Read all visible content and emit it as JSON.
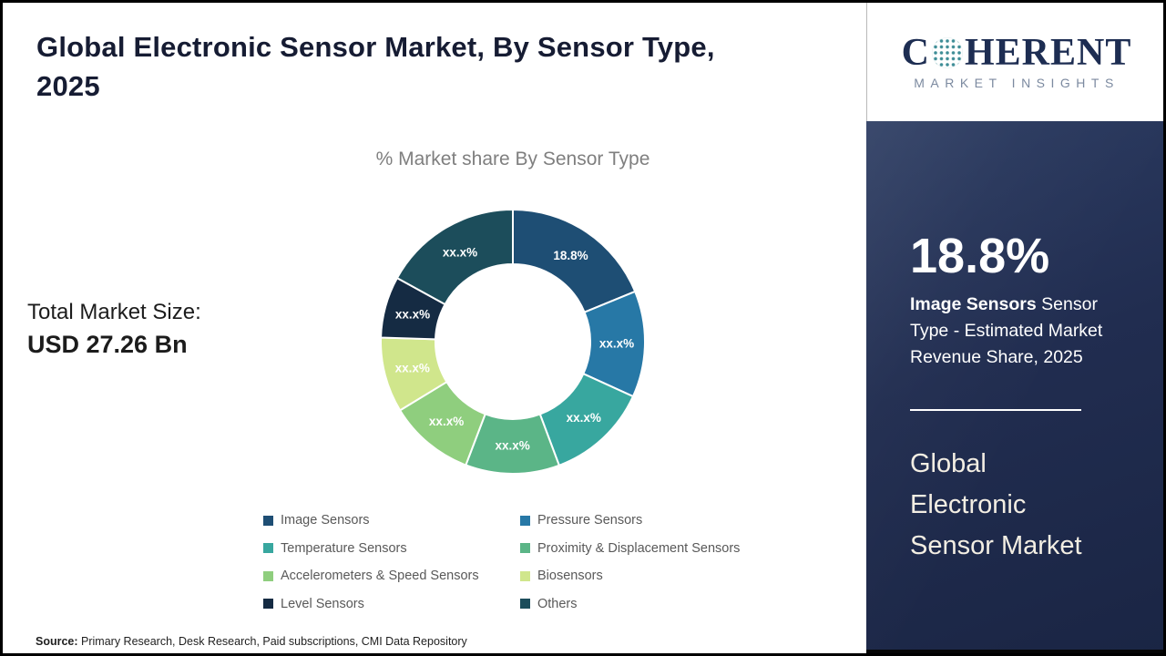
{
  "page": {
    "title_line1": "Global Electronic Sensor Market, By Sensor Type,",
    "title_line2": "2025",
    "source_label": "Source:",
    "source_text": " Primary Research, Desk Research, Paid subscriptions, CMI Data Repository"
  },
  "logo": {
    "brand_c": "C",
    "brand_rest": "HERENT",
    "subtitle": "MARKET INSIGHTS"
  },
  "left_stats": {
    "label": "Total Market Size:",
    "value": "USD 27.26 Bn"
  },
  "chart_data": {
    "type": "pie",
    "donut": true,
    "title": "% Market share By Sensor Type",
    "start_angle_deg": 0,
    "direction": "clockwise",
    "inner_radius_ratio": 0.59,
    "legend_position": "bottom",
    "series": [
      {
        "name": "Image Sensors",
        "label": "18.8%",
        "value": 18.8,
        "color": "#1E4E74"
      },
      {
        "name": "Pressure Sensors",
        "label": "xx.x%",
        "value": 13.0,
        "color": "#2778A6",
        "value_masked": true
      },
      {
        "name": "Temperature Sensors",
        "label": "xx.x%",
        "value": 12.5,
        "color": "#38A79F",
        "value_masked": true
      },
      {
        "name": "Proximity & Displacement Sensors",
        "label": "xx.x%",
        "value": 11.5,
        "color": "#5BB587",
        "value_masked": true
      },
      {
        "name": "Accelerometers & Speed Sensors",
        "label": "xx.x%",
        "value": 10.5,
        "color": "#8FCE7E",
        "value_masked": true
      },
      {
        "name": "Biosensors",
        "label": "xx.x%",
        "value": 9.2,
        "color": "#D0E68C",
        "value_masked": true
      },
      {
        "name": "Level Sensors",
        "label": "xx.x%",
        "value": 7.5,
        "color": "#152B43",
        "value_masked": true
      },
      {
        "name": "Others",
        "label": "xx.x%",
        "value": 17.0,
        "color": "#1C4D5B",
        "value_masked": true
      }
    ],
    "legend_column_order": [
      0,
      2,
      4,
      6,
      1,
      3,
      5,
      7
    ],
    "values_note": "Only the Image Sensors share (18.8%) is shown in the image; other segment labels are masked as xx.x%. Masked numeric values are visual estimates used for arc sizing."
  },
  "side_panel": {
    "highlight_value": "18.8%",
    "highlight_bold": "Image Sensors",
    "highlight_rest": " Sensor Type - Estimated Market Revenue Share, 2025",
    "panel_title": "Global Electronic Sensor Market"
  }
}
